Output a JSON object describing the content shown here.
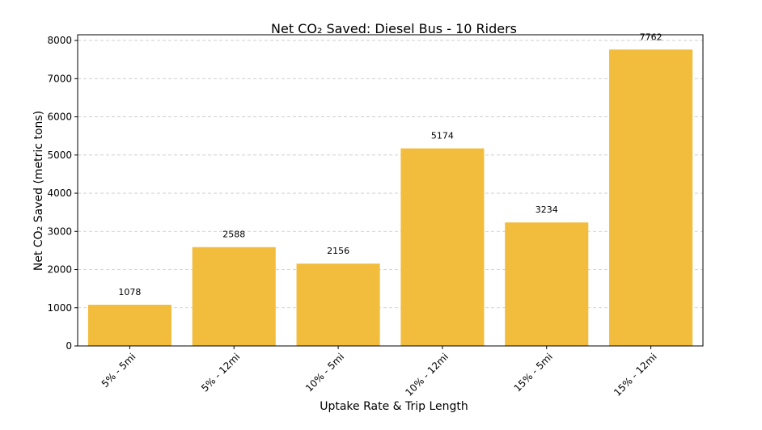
{
  "chart_data": {
    "type": "bar",
    "title": "Net CO₂ Saved: Diesel Bus - 10 Riders",
    "xlabel": "Uptake Rate & Trip Length",
    "ylabel": "Net CO₂ Saved (metric tons)",
    "categories": [
      "5% - 5mi",
      "5% - 12mi",
      "10% - 5mi",
      "10% - 12mi",
      "15% - 5mi",
      "15% - 12mi"
    ],
    "values": [
      1078,
      2588,
      2156,
      5174,
      3234,
      7762
    ],
    "data_labels": [
      "1078",
      "2588",
      "2156",
      "5174",
      "3234",
      "7762"
    ],
    "ylim": [
      0,
      8150
    ],
    "yticks": [
      0,
      1000,
      2000,
      3000,
      4000,
      5000,
      6000,
      7000,
      8000
    ],
    "grid": "y-dashed",
    "bar_color": "#f2bc3c",
    "legend": "none"
  }
}
